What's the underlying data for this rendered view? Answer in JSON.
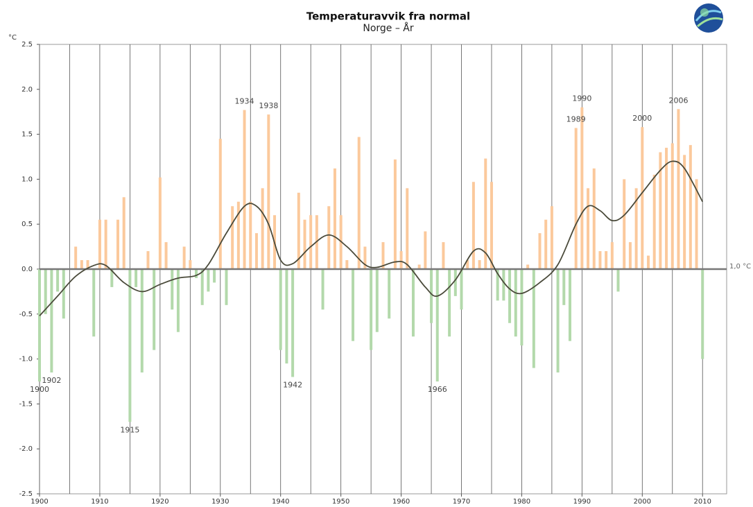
{
  "chart_data": {
    "type": "bar",
    "title": "Temperaturavvik fra normal",
    "subtitle": "Norge – År",
    "y_unit": "°C",
    "reference_label": "1,0 °C",
    "x": [
      1900,
      1901,
      1902,
      1903,
      1904,
      1905,
      1906,
      1907,
      1908,
      1909,
      1910,
      1911,
      1912,
      1913,
      1914,
      1915,
      1916,
      1917,
      1918,
      1919,
      1920,
      1921,
      1922,
      1923,
      1924,
      1925,
      1926,
      1927,
      1928,
      1929,
      1930,
      1931,
      1932,
      1933,
      1934,
      1935,
      1936,
      1937,
      1938,
      1939,
      1940,
      1941,
      1942,
      1943,
      1944,
      1945,
      1946,
      1947,
      1948,
      1949,
      1950,
      1951,
      1952,
      1953,
      1954,
      1955,
      1956,
      1957,
      1958,
      1959,
      1960,
      1961,
      1962,
      1963,
      1964,
      1965,
      1966,
      1967,
      1968,
      1969,
      1970,
      1971,
      1972,
      1973,
      1974,
      1975,
      1976,
      1977,
      1978,
      1979,
      1980,
      1981,
      1982,
      1983,
      1984,
      1985,
      1986,
      1987,
      1988,
      1989,
      1990,
      1991,
      1992,
      1993,
      1994,
      1995,
      1996,
      1997,
      1998,
      1999,
      2000,
      2001,
      2002,
      2003,
      2004,
      2005,
      2006,
      2007,
      2008,
      2009,
      2010
    ],
    "values": [
      -1.25,
      -0.5,
      -1.15,
      -0.25,
      -0.55,
      0.0,
      0.25,
      0.1,
      0.1,
      -0.75,
      0.55,
      0.55,
      -0.2,
      0.55,
      0.8,
      -1.7,
      -0.2,
      -1.15,
      0.2,
      -0.9,
      1.02,
      0.3,
      -0.45,
      -0.7,
      0.25,
      0.1,
      -0.1,
      -0.4,
      -0.25,
      -0.15,
      1.45,
      -0.4,
      0.7,
      0.75,
      1.77,
      0.75,
      0.4,
      0.9,
      1.72,
      0.6,
      -0.9,
      -1.05,
      -1.2,
      0.85,
      0.55,
      0.6,
      0.6,
      -0.45,
      0.7,
      1.12,
      0.6,
      0.1,
      -0.8,
      1.47,
      0.25,
      -0.9,
      -0.7,
      0.3,
      -0.55,
      1.22,
      0.2,
      0.9,
      -0.75,
      0.05,
      0.42,
      -0.6,
      -1.25,
      0.3,
      -0.75,
      -0.3,
      -0.45,
      0.1,
      0.97,
      0.1,
      1.23,
      0.97,
      -0.35,
      -0.35,
      -0.6,
      -0.75,
      -0.85,
      0.05,
      -1.1,
      0.4,
      0.55,
      0.7,
      -1.15,
      -0.4,
      -0.8,
      1.57,
      1.8,
      0.9,
      1.12,
      0.2,
      0.2,
      0.3,
      -0.25,
      1.0,
      0.3,
      0.9,
      1.58,
      0.15,
      1.05,
      1.3,
      1.35,
      1.4,
      1.78,
      1.27,
      1.38,
      1.0,
      -1.0
    ],
    "positive_color": "#fbc99c",
    "negative_color": "#b3d9ab",
    "trend": {
      "color": "#4a4a3a",
      "x": [
        1900,
        1903,
        1906,
        1909,
        1911,
        1914,
        1917,
        1920,
        1923,
        1926,
        1928,
        1931,
        1934,
        1936,
        1938,
        1940,
        1942,
        1945,
        1948,
        1951,
        1954,
        1956,
        1959,
        1961,
        1964,
        1966,
        1969,
        1972,
        1974,
        1976,
        1978,
        1980,
        1983,
        1986,
        1989,
        1991,
        1993,
        1995,
        1997,
        2000,
        2003,
        2005,
        2007,
        2010
      ],
      "values": [
        -0.52,
        -0.3,
        -0.08,
        0.04,
        0.04,
        -0.15,
        -0.25,
        -0.17,
        -0.1,
        -0.07,
        0.05,
        0.4,
        0.7,
        0.7,
        0.5,
        0.1,
        0.06,
        0.25,
        0.38,
        0.25,
        0.05,
        0.02,
        0.08,
        0.05,
        -0.2,
        -0.3,
        -0.12,
        0.2,
        0.18,
        -0.05,
        -0.22,
        -0.27,
        -0.15,
        0.05,
        0.5,
        0.7,
        0.65,
        0.54,
        0.6,
        0.85,
        1.1,
        1.2,
        1.12,
        0.75
      ]
    },
    "annotations": [
      {
        "label": "1900",
        "x": 1900
      },
      {
        "label": "1902",
        "x": 1902
      },
      {
        "label": "1915",
        "x": 1915
      },
      {
        "label": "1934",
        "x": 1934
      },
      {
        "label": "1938",
        "x": 1938
      },
      {
        "label": "1942",
        "x": 1942
      },
      {
        "label": "1966",
        "x": 1966
      },
      {
        "label": "1989",
        "x": 1989
      },
      {
        "label": "1990",
        "x": 1990
      },
      {
        "label": "2000",
        "x": 2000
      },
      {
        "label": "2006",
        "x": 2006
      }
    ],
    "xlim": [
      1900,
      2014
    ],
    "xticks": [
      1900,
      1910,
      1920,
      1930,
      1940,
      1950,
      1960,
      1970,
      1980,
      1990,
      2000,
      2010
    ],
    "ylim": [
      -2.5,
      2.5
    ],
    "yticks": [
      2.5,
      {
        "value": 2,
        "label": "2.0"
      },
      1.5,
      {
        "value": 1,
        "label": "1.0"
      },
      0.5,
      {
        "value": 0,
        "label": "0.0"
      },
      -0.5,
      {
        "value": -1,
        "label": "-1.0"
      },
      -1.5,
      {
        "value": -2,
        "label": "-2.0"
      },
      -2.5
    ]
  }
}
